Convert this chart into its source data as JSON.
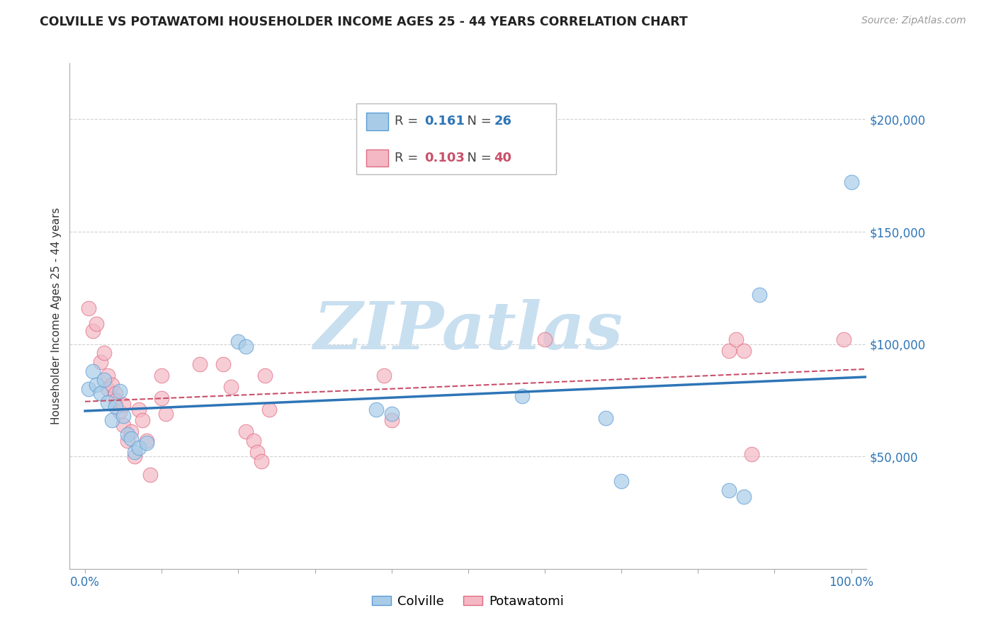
{
  "title": "COLVILLE VS POTAWATOMI HOUSEHOLDER INCOME AGES 25 - 44 YEARS CORRELATION CHART",
  "source": "Source: ZipAtlas.com",
  "ylabel": "Householder Income Ages 25 - 44 years",
  "y_tick_labels": [
    "$50,000",
    "$100,000",
    "$150,000",
    "$200,000"
  ],
  "y_tick_values": [
    50000,
    100000,
    150000,
    200000
  ],
  "xlim": [
    -0.02,
    1.02
  ],
  "ylim": [
    0,
    225000
  ],
  "legend_R_colville": "0.161",
  "legend_N_colville": "26",
  "legend_R_potawatomi": "0.103",
  "legend_N_potawatomi": "40",
  "colville_color": "#a8cce8",
  "colville_edge_color": "#5b9bd5",
  "colville_line_color": "#2e75b6",
  "potawatomi_color": "#f4b8c4",
  "potawatomi_edge_color": "#e06b82",
  "potawatomi_line_color": "#c9506a",
  "watermark_color": "#c8dff0",
  "background_color": "#ffffff",
  "grid_color": "#cccccc",
  "colville_x": [
    0.005,
    0.01,
    0.015,
    0.02,
    0.025,
    0.03,
    0.035,
    0.04,
    0.045,
    0.05,
    0.055,
    0.06,
    0.065,
    0.07,
    0.08,
    0.2,
    0.21,
    0.38,
    0.4,
    0.57,
    0.68,
    0.7,
    0.84,
    0.86,
    0.88,
    1.0
  ],
  "colville_y": [
    80000,
    88000,
    82000,
    78000,
    84000,
    74000,
    66000,
    72000,
    79000,
    68000,
    60000,
    58000,
    52000,
    54000,
    56000,
    101000,
    99000,
    71000,
    69000,
    77000,
    67000,
    39000,
    35000,
    32000,
    122000,
    172000
  ],
  "potawatomi_x": [
    0.005,
    0.01,
    0.015,
    0.02,
    0.025,
    0.03,
    0.03,
    0.035,
    0.04,
    0.04,
    0.045,
    0.05,
    0.05,
    0.055,
    0.06,
    0.065,
    0.07,
    0.075,
    0.08,
    0.085,
    0.1,
    0.1,
    0.105,
    0.15,
    0.18,
    0.19,
    0.21,
    0.22,
    0.225,
    0.23,
    0.235,
    0.24,
    0.39,
    0.4,
    0.6,
    0.84,
    0.85,
    0.86,
    0.87,
    0.99
  ],
  "potawatomi_y": [
    116000,
    106000,
    109000,
    92000,
    96000,
    86000,
    80000,
    82000,
    78000,
    75000,
    70000,
    73000,
    64000,
    57000,
    61000,
    50000,
    71000,
    66000,
    57000,
    42000,
    86000,
    76000,
    69000,
    91000,
    91000,
    81000,
    61000,
    57000,
    52000,
    48000,
    86000,
    71000,
    86000,
    66000,
    102000,
    97000,
    102000,
    97000,
    51000,
    102000
  ]
}
